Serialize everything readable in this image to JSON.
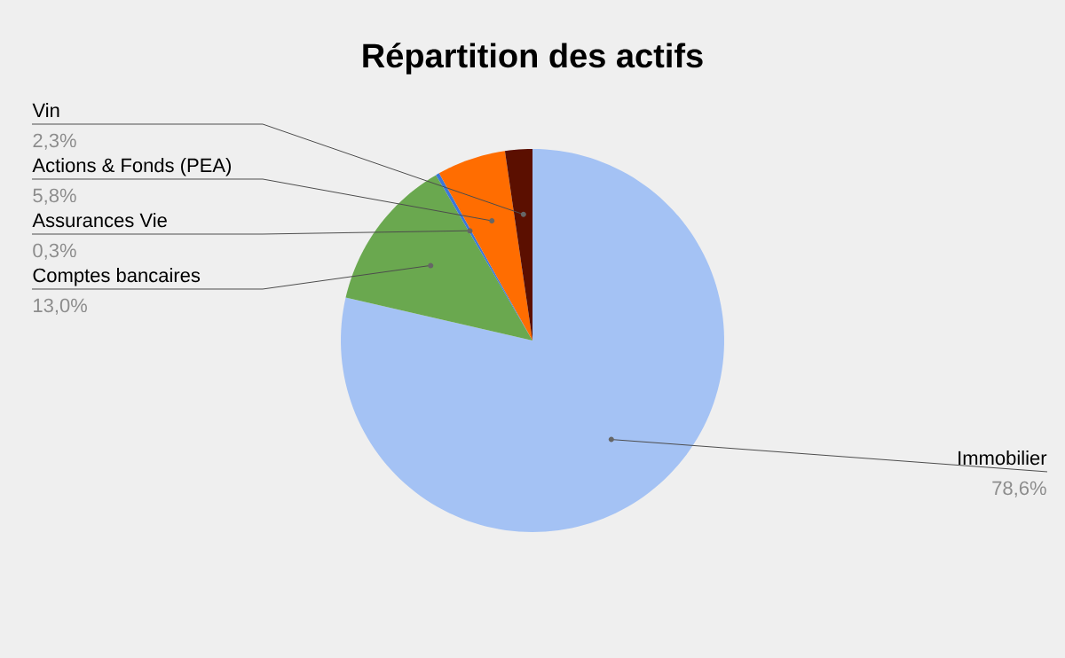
{
  "chart_data": {
    "type": "pie",
    "title": "Répartition des actifs",
    "categories": [
      "Immobilier",
      "Comptes bancaires",
      "Assurances Vie",
      "Actions & Fonds (PEA)",
      "Vin"
    ],
    "values": [
      78.6,
      13.0,
      0.3,
      5.8,
      2.3
    ],
    "value_labels": [
      "78,6%",
      "13,0%",
      "0,3%",
      "5,8%",
      "2,3%"
    ],
    "colors": [
      "#a4c2f4",
      "#6aa84f",
      "#3c78d8",
      "#ff6d01",
      "#5b0f00"
    ]
  }
}
